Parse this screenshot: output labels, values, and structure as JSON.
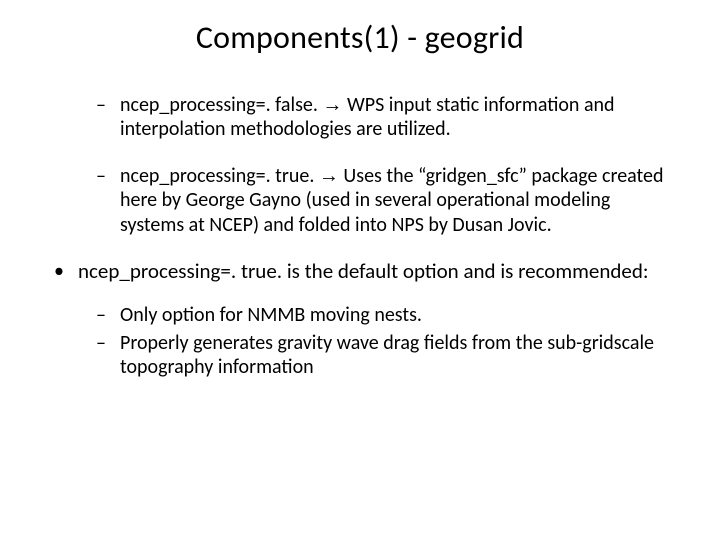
{
  "slide": {
    "title": "Components(1) - geogrid",
    "bullets": [
      {
        "level": 2,
        "segments": [
          {
            "text": "ncep_processing=. false."
          },
          {
            "text": " "
          },
          {
            "text": "→",
            "class": "arrow"
          },
          {
            "text": " WPS input static information and interpolation methodologies are utilized."
          }
        ]
      },
      {
        "level": 2,
        "segments": [
          {
            "text": "ncep_processing=. true."
          },
          {
            "text": " "
          },
          {
            "text": "→",
            "class": "arrow"
          },
          {
            "text": " Uses the “gridgen_sfc” package created here by George Gayno (used in several operational modeling systems at NCEP) and folded into NPS by Dusan Jovic."
          }
        ]
      },
      {
        "level": 1,
        "segments": [
          {
            "text": "ncep_processing=. true."
          },
          {
            "text": " is the default option and is recommended:"
          }
        ]
      },
      {
        "level": 2,
        "tight": true,
        "segments": [
          {
            "text": "Only option for NMMB moving nests."
          }
        ]
      },
      {
        "level": 2,
        "segments": [
          {
            "text": "Properly generates gravity wave drag fields from the sub-gridscale topography information"
          }
        ]
      }
    ],
    "colors": {
      "background": "#ffffff",
      "text": "#000000"
    },
    "fonts": {
      "title_size_pt": 32,
      "body_size_pt": 21,
      "family": "Calibri"
    }
  }
}
